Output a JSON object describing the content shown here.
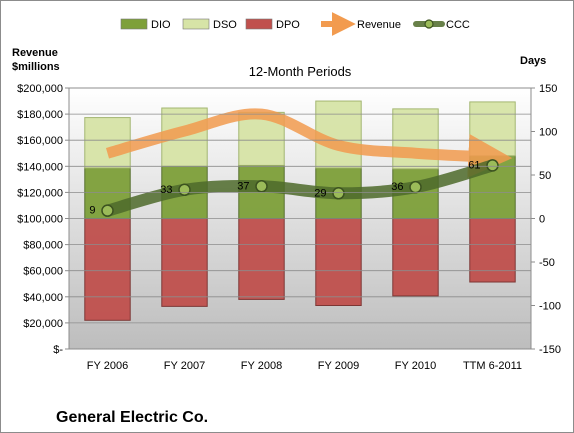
{
  "chart_data": {
    "type": "bar",
    "title": "12-Month Periods",
    "footer_title": "General Electric Co.",
    "left_axis_label": [
      "Revenue",
      "$millions"
    ],
    "right_axis_label": "Days",
    "categories": [
      "FY 2006",
      "FY 2007",
      "FY 2008",
      "FY 2009",
      "FY 2010",
      "TTM 6-2011"
    ],
    "left_ticks": [
      "$-",
      "$20,000",
      "$40,000",
      "$60,000",
      "$80,000",
      "$100,000",
      "$120,000",
      "$140,000",
      "$160,000",
      "$180,000",
      "$200,000"
    ],
    "right_ticks": [
      "-150",
      "-100",
      "-50",
      "0",
      "50",
      "100",
      "150"
    ],
    "ylim_left": [
      0,
      200000
    ],
    "ylim_right": [
      -150,
      150
    ],
    "legend_position": "top",
    "series": [
      {
        "name": "DIO",
        "axis": "days",
        "kind": "stacked-bar",
        "color": "#7ea03a",
        "values": [
          58,
          60,
          61,
          58,
          57,
          72
        ]
      },
      {
        "name": "DSO",
        "axis": "days",
        "kind": "stacked-bar",
        "color": "#d7e4a7",
        "values": [
          58,
          67,
          61,
          77,
          69,
          62
        ]
      },
      {
        "name": "DPO",
        "axis": "days",
        "kind": "negative-bar",
        "color": "#c0504d",
        "values": [
          -117,
          -101,
          -93,
          -100,
          -89,
          -73
        ]
      },
      {
        "name": "Revenue",
        "axis": "revenue",
        "kind": "arrow-line",
        "color": "#f29b4f",
        "values": [
          150000,
          167000,
          180000,
          156000,
          150000,
          147000
        ]
      },
      {
        "name": "CCC",
        "axis": "days",
        "kind": "line",
        "color": "#4e6a2a",
        "values": [
          9,
          33,
          37,
          29,
          36,
          61
        ],
        "labels": [
          "9",
          "33",
          "37",
          "29",
          "36",
          "61"
        ]
      }
    ]
  }
}
